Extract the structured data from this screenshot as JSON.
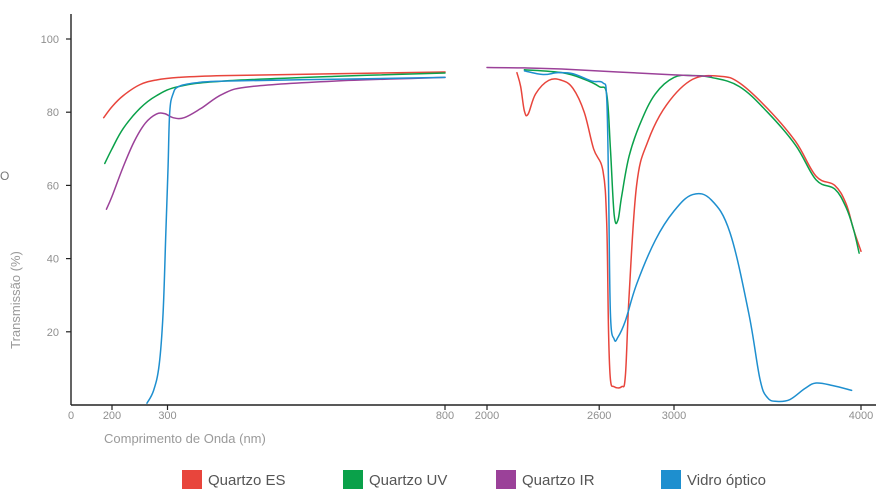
{
  "chart_data": {
    "type": "line",
    "title": "",
    "xlabel": "Comprimento de Onda (nm)",
    "ylabel": "Transmissão (%)",
    "ylim": [
      0,
      100
    ],
    "yticks": [
      20,
      40,
      60,
      80,
      100
    ],
    "x_axis_segments": [
      {
        "range": [
          200,
          800
        ],
        "ticks": [
          200,
          300,
          800
        ]
      },
      {
        "range": [
          2000,
          4000
        ],
        "ticks": [
          2000,
          2600,
          3000,
          4000
        ]
      }
    ],
    "extra_x_tick_labels": [
      "0"
    ],
    "stray_label": "O",
    "grid": false,
    "legend_position": "bottom",
    "colors": {
      "quartzo_es": "#e8453c",
      "quartzo_uv": "#0aa14a",
      "quartzo_ir": "#9b4199",
      "vidro_optico": "#1e8fcf"
    },
    "series": [
      {
        "name": "Quartzo ES",
        "color": "#e8453c",
        "segments": [
          [
            [
              185,
              78.5
            ],
            [
              200,
              81.5
            ],
            [
              220,
              84.5
            ],
            [
              250,
              87.5
            ],
            [
              280,
              88.8
            ],
            [
              320,
              89.5
            ],
            [
              400,
              90
            ],
            [
              600,
              90.5
            ],
            [
              800,
              91
            ]
          ],
          [
            [
              2160,
              90.8
            ],
            [
              2180,
              87
            ],
            [
              2200,
              80.3
            ],
            [
              2220,
              79.5
            ],
            [
              2260,
              85
            ],
            [
              2330,
              88.7
            ],
            [
              2400,
              88.7
            ],
            [
              2460,
              86.5
            ],
            [
              2520,
              80
            ],
            [
              2570,
              70
            ],
            [
              2620,
              64
            ],
            [
              2640,
              50
            ],
            [
              2650,
              20
            ],
            [
              2660,
              7
            ],
            [
              2680,
              5
            ],
            [
              2720,
              5
            ],
            [
              2740,
              8
            ],
            [
              2760,
              30
            ],
            [
              2800,
              60
            ],
            [
              2860,
              72
            ],
            [
              2960,
              82
            ],
            [
              3100,
              89
            ],
            [
              3250,
              89.8
            ],
            [
              3350,
              88
            ],
            [
              3500,
              81
            ],
            [
              3650,
              72
            ],
            [
              3760,
              62.5
            ],
            [
              3860,
              60
            ],
            [
              3920,
              55
            ],
            [
              3960,
              48
            ],
            [
              4000,
              42
            ]
          ]
        ]
      },
      {
        "name": "Quartzo UV",
        "color": "#0aa14a",
        "segments": [
          [
            [
              187,
              66
            ],
            [
              200,
              70
            ],
            [
              220,
              75.5
            ],
            [
              250,
              81
            ],
            [
              280,
              84.5
            ],
            [
              320,
              87
            ],
            [
              400,
              88.5
            ],
            [
              600,
              89.8
            ],
            [
              800,
              90.7
            ]
          ],
          [
            [
              2200,
              91.6
            ],
            [
              2400,
              90.8
            ],
            [
              2520,
              89
            ],
            [
              2600,
              87
            ],
            [
              2640,
              85
            ],
            [
              2660,
              70
            ],
            [
              2680,
              52
            ],
            [
              2700,
              50.5
            ],
            [
              2720,
              57
            ],
            [
              2760,
              68
            ],
            [
              2820,
              77
            ],
            [
              2900,
              85
            ],
            [
              3000,
              89.5
            ],
            [
              3100,
              90
            ],
            [
              3200,
              89.5
            ],
            [
              3350,
              87
            ],
            [
              3500,
              80
            ],
            [
              3650,
              71
            ],
            [
              3760,
              61.5
            ],
            [
              3860,
              59
            ],
            [
              3920,
              54
            ],
            [
              3960,
              48
            ],
            [
              3990,
              41.5
            ]
          ]
        ]
      },
      {
        "name": "Quartzo IR",
        "color": "#9b4199",
        "segments": [
          [
            [
              190,
              53.5
            ],
            [
              200,
              57
            ],
            [
              220,
              65
            ],
            [
              240,
              72
            ],
            [
              260,
              77
            ],
            [
              280,
              79.5
            ],
            [
              295,
              79.6
            ],
            [
              310,
              78.5
            ],
            [
              330,
              78.5
            ],
            [
              360,
              81
            ],
            [
              400,
              85
            ],
            [
              450,
              87
            ],
            [
              600,
              88.5
            ],
            [
              800,
              89.5
            ]
          ],
          [
            [
              2000,
              92.2
            ],
            [
              2200,
              92.1
            ],
            [
              2400,
              91.8
            ],
            [
              2700,
              91
            ],
            [
              3000,
              90.2
            ],
            [
              3200,
              89.8
            ]
          ]
        ]
      },
      {
        "name": "Vidro óptico",
        "color": "#1e8fcf",
        "segments": [
          [
            [
              263,
              0.5
            ],
            [
              275,
              4
            ],
            [
              285,
              11
            ],
            [
              292,
              25
            ],
            [
              297,
              47
            ],
            [
              301,
              65
            ],
            [
              304,
              80
            ],
            [
              310,
              85
            ],
            [
              320,
              87
            ],
            [
              350,
              88
            ],
            [
              400,
              88.5
            ],
            [
              600,
              89
            ],
            [
              800,
              89.5
            ]
          ],
          [
            [
              2200,
              91.3
            ],
            [
              2300,
              90.3
            ],
            [
              2380,
              90.8
            ],
            [
              2460,
              90.5
            ],
            [
              2560,
              88.5
            ],
            [
              2620,
              88
            ],
            [
              2640,
              84
            ],
            [
              2650,
              60
            ],
            [
              2660,
              25
            ],
            [
              2680,
              18
            ],
            [
              2700,
              18.5
            ],
            [
              2740,
              23
            ],
            [
              2800,
              33
            ],
            [
              2900,
              45
            ],
            [
              3000,
              53
            ],
            [
              3100,
              57.5
            ],
            [
              3200,
              56
            ],
            [
              3300,
              47
            ],
            [
              3400,
              25
            ],
            [
              3460,
              7
            ],
            [
              3500,
              2
            ],
            [
              3550,
              1
            ],
            [
              3620,
              1.5
            ],
            [
              3700,
              4.5
            ],
            [
              3760,
              6
            ],
            [
              3850,
              5.3
            ],
            [
              3950,
              4
            ]
          ]
        ]
      }
    ]
  }
}
